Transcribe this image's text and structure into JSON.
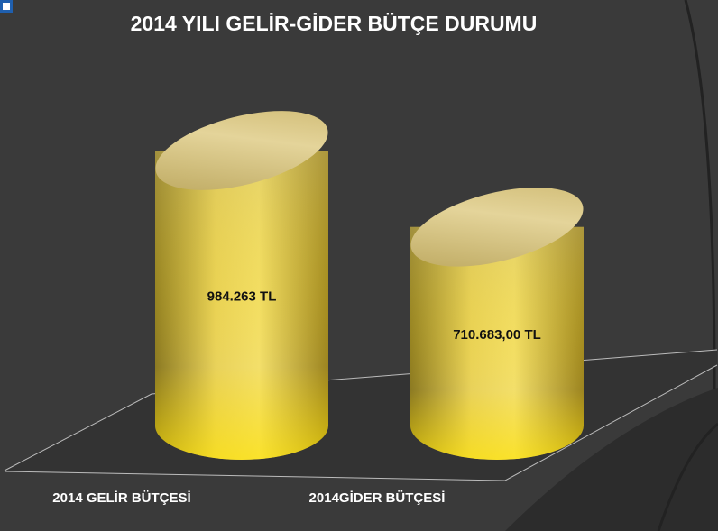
{
  "chart_data": {
    "type": "cylinder",
    "title": "2014 YILI GELİR-GİDER BÜTÇE DURUMU",
    "categories": [
      "2014 GELİR BÜTÇESİ",
      "2014GİDER BÜTÇESİ"
    ],
    "values": [
      984263,
      710683
    ],
    "value_labels": [
      "984.263 TL",
      "710.683,00 TL"
    ],
    "color": "#e8c832"
  }
}
